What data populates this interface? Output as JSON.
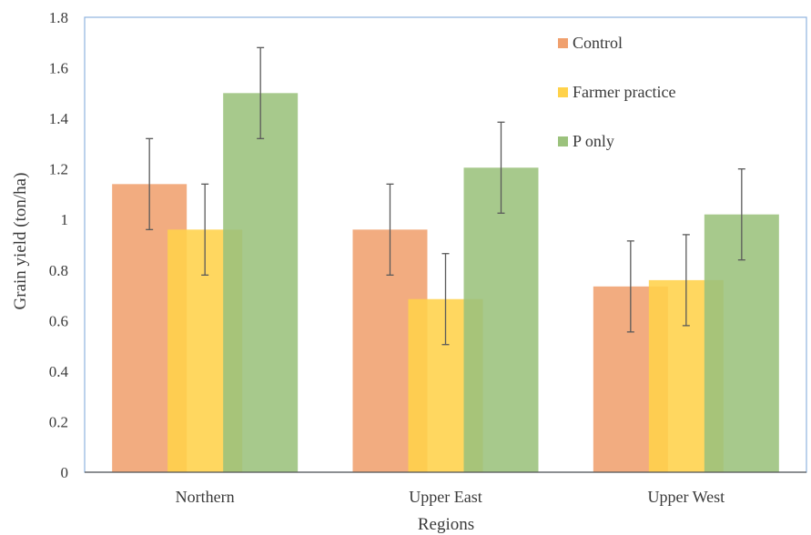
{
  "chart_data": {
    "type": "bar",
    "title": "",
    "xlabel": "Regions",
    "ylabel": "Grain yield (ton/ha)",
    "categories": [
      "Northern",
      "Upper East",
      "Upper West"
    ],
    "series": [
      {
        "name": "Control",
        "color": "#F0A06E",
        "values": [
          1.14,
          0.96,
          0.735
        ],
        "error": [
          0.18,
          0.18,
          0.18
        ]
      },
      {
        "name": "Farmer practice",
        "color": "#FFD24A",
        "values": [
          0.96,
          0.685,
          0.76
        ],
        "error": [
          0.18,
          0.18,
          0.18
        ]
      },
      {
        "name": "P only",
        "color": "#9BC27C",
        "values": [
          1.5,
          1.205,
          1.02
        ],
        "error": [
          0.18,
          0.18,
          0.18
        ]
      }
    ],
    "ylim": [
      0,
      1.8
    ],
    "yticks": [
      "0",
      "0.2",
      "0.4",
      "0.6",
      "0.8",
      "1",
      "1.2",
      "1.4",
      "1.6",
      "1.8"
    ],
    "grid": false,
    "legend": "top-right",
    "frame_color": "#8FB4E0"
  }
}
